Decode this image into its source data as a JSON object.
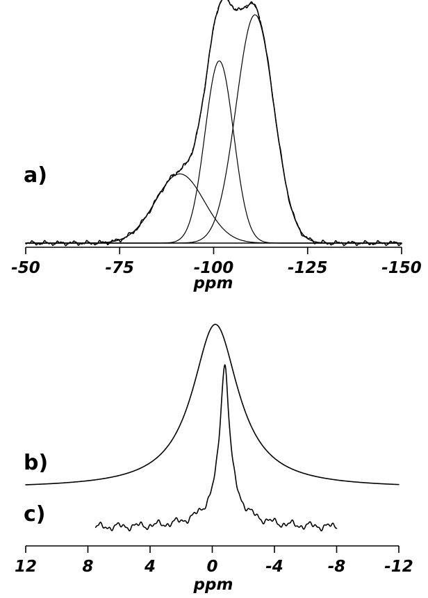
{
  "chart_data": [
    {
      "type": "line",
      "panel_label": "a)",
      "xlabel": "ppm",
      "xlim": [
        -50,
        -150
      ],
      "x_ticks": [
        -50,
        -75,
        -100,
        -125,
        -150
      ],
      "x_tick_labels": [
        "-50",
        "-75",
        "-100",
        "-125",
        "-150"
      ],
      "grid": false,
      "components": [
        {
          "center": -91,
          "width": 6.5,
          "height": 0.3
        },
        {
          "center": -101.5,
          "width": 3.8,
          "height": 0.79
        },
        {
          "center": -111,
          "width": 5.0,
          "height": 0.99
        }
      ],
      "series": [
        {
          "role": "spectrum",
          "baseline_noise": 0.012
        },
        {
          "role": "fit-envelope",
          "dashed": true
        }
      ]
    },
    {
      "type": "line",
      "panel_label": "b)",
      "xlabel": "ppm",
      "xlim": [
        12,
        -12
      ],
      "x_ticks": [
        12,
        8,
        4,
        0,
        -4,
        -8,
        -12
      ],
      "x_tick_labels": [
        "12",
        "8",
        "4",
        "0",
        "-4",
        "-8",
        "-12"
      ],
      "grid": false,
      "series": [
        {
          "role": "spectrum",
          "center": -0.2,
          "hwhm": 1.8,
          "height": 1.0,
          "x_range": [
            12,
            -12
          ]
        }
      ]
    },
    {
      "type": "line",
      "panel_label": "c)",
      "xlabel": "ppm",
      "xlim": [
        12,
        -12
      ],
      "grid": false,
      "series": [
        {
          "role": "spectrum",
          "center": -0.8,
          "hwhm": 0.35,
          "height": 1.0,
          "x_range": [
            7.5,
            -8
          ],
          "baseline_noise": 0.03
        }
      ]
    }
  ]
}
